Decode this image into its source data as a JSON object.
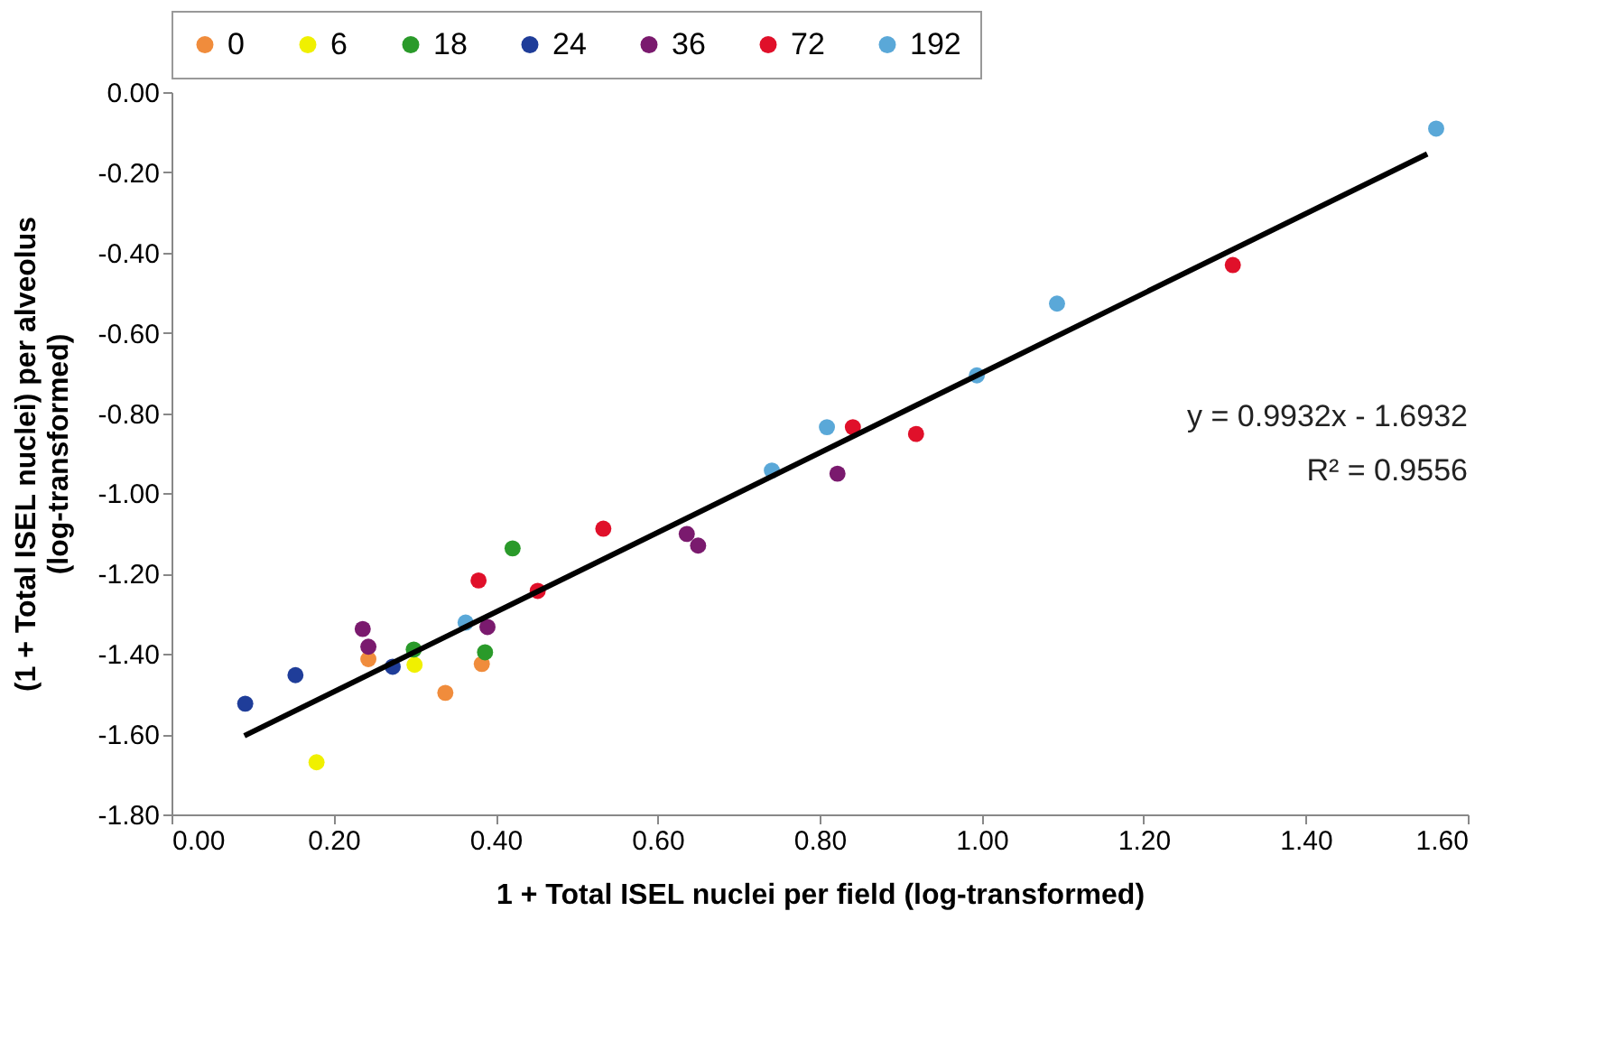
{
  "chart_data": {
    "type": "scatter",
    "xlabel": "1 + Total ISEL nuclei per field (log-transformed)",
    "ylabel": "(1 + Total ISEL nuclei) per alveolus\n(log-transformed)",
    "xlim": [
      0,
      1.6
    ],
    "xticks": [
      {
        "value": 0,
        "label": "0.00"
      },
      {
        "value": 0.2,
        "label": "0.20"
      },
      {
        "value": 0.4,
        "label": "0.40"
      },
      {
        "value": 0.6,
        "label": "0.60"
      },
      {
        "value": 0.8,
        "label": "0.80"
      },
      {
        "value": 1.0,
        "label": "1.00"
      },
      {
        "value": 1.2,
        "label": "1.20"
      },
      {
        "value": 1.4,
        "label": "1.40"
      },
      {
        "value": 1.6,
        "label": "1.60"
      }
    ],
    "ylim": [
      -1.8,
      0
    ],
    "yticks": [
      {
        "value": -1.8,
        "label": "-1.80"
      },
      {
        "value": -1.6,
        "label": "-1.60"
      },
      {
        "value": -1.4,
        "label": "-1.40"
      },
      {
        "value": -1.2,
        "label": "-1.20"
      },
      {
        "value": -1.0,
        "label": "-1.00"
      },
      {
        "value": -0.8,
        "label": "-0.80"
      },
      {
        "value": -0.6,
        "label": "-0.60"
      },
      {
        "value": -0.4,
        "label": "-0.40"
      },
      {
        "value": -0.2,
        "label": "-0.20"
      },
      {
        "value": 0,
        "label": "0.00"
      }
    ],
    "grid": false,
    "legend": "top",
    "marker": "circle",
    "annotations": [
      "y = 0.9932x - 1.6932",
      "R² = 0.9556"
    ],
    "series": [
      {
        "name": "0",
        "color": "#f08c3c",
        "x": [
          0.243,
          0.338,
          0.383
        ],
        "values": [
          -1.413,
          -1.497,
          -1.425
        ]
      },
      {
        "name": "6",
        "color": "#f0f000",
        "x": [
          0.179,
          0.3
        ],
        "values": [
          -1.67,
          -1.427
        ]
      },
      {
        "name": "18",
        "color": "#2a9a2a",
        "x": [
          0.299,
          0.387,
          0.421
        ],
        "values": [
          -1.389,
          -1.396,
          -1.137
        ]
      },
      {
        "name": "24",
        "color": "#1f3d99",
        "x": [
          0.091,
          0.153,
          0.273
        ],
        "values": [
          -1.524,
          -1.453,
          -1.432
        ]
      },
      {
        "name": "36",
        "color": "#7a1a6e",
        "x": [
          0.236,
          0.243,
          0.39,
          0.636,
          0.65,
          0.822
        ],
        "values": [
          -1.338,
          -1.382,
          -1.333,
          -1.101,
          -1.13,
          -0.951
        ]
      },
      {
        "name": "72",
        "color": "#e0102a",
        "x": [
          0.379,
          0.452,
          0.533,
          0.841,
          0.919,
          1.31
        ],
        "values": [
          -1.217,
          -1.243,
          -1.088,
          -0.835,
          -0.852,
          -0.431
        ]
      },
      {
        "name": "192",
        "color": "#5aa8d8",
        "x": [
          0.363,
          0.741,
          0.809,
          0.994,
          1.093,
          1.561
        ],
        "values": [
          -1.322,
          -0.943,
          -0.835,
          -0.706,
          -0.527,
          -0.091
        ]
      },
      {
        "type": "line",
        "marker": "none",
        "color": "#000000",
        "x": [
          0.09,
          1.55
        ],
        "values": [
          -1.604,
          -0.154
        ]
      }
    ]
  }
}
